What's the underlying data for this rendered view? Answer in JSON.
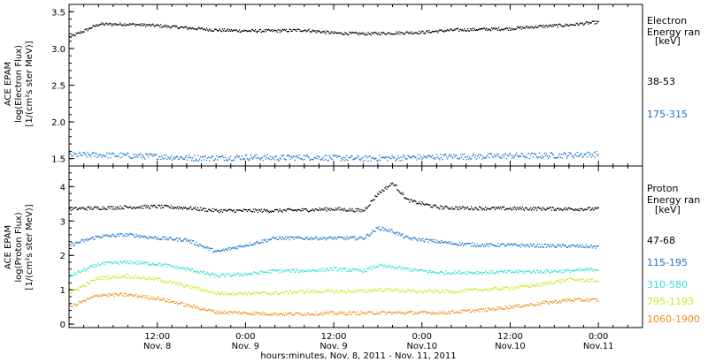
{
  "colors": {
    "black": "#000000",
    "blue": "#1a72c9",
    "cyan": "#2fe0d0",
    "lime": "#c9e81f",
    "orange": "#f08c1c"
  },
  "chart_data": [
    {
      "type": "scatter",
      "ylabel_lines": [
        "ACE EPAM",
        "log(Electron Flux)",
        "[1/(cm²s ster MeV)]"
      ],
      "ylim": [
        1.4,
        3.6
      ],
      "yticks": [
        "1.5",
        "2.0",
        "2.5",
        "3.0",
        "3.5"
      ],
      "grid": false,
      "legend_title": [
        "Electron",
        "Energy ran",
        "[keV]"
      ],
      "x_hours": [
        0,
        4,
        8,
        12,
        16,
        20,
        24,
        28,
        32,
        36,
        40,
        44,
        48,
        52,
        56,
        60,
        64,
        68,
        72
      ],
      "series": [
        {
          "name": "38-53",
          "color": "#000000",
          "values": [
            3.15,
            3.33,
            3.33,
            3.31,
            3.28,
            3.25,
            3.24,
            3.24,
            3.25,
            3.21,
            3.2,
            3.21,
            3.22,
            3.25,
            3.26,
            3.27,
            3.3,
            3.32,
            3.36
          ]
        },
        {
          "name": "175-315",
          "color": "#1a72c9",
          "values": [
            1.55,
            1.55,
            1.54,
            1.53,
            1.51,
            1.51,
            1.52,
            1.51,
            1.52,
            1.51,
            1.5,
            1.51,
            1.52,
            1.53,
            1.53,
            1.54,
            1.54,
            1.55,
            1.56
          ]
        }
      ]
    },
    {
      "type": "scatter",
      "ylabel_lines": [
        "ACE EPAM",
        "log(Proton Flux)",
        "[1/(cm²s ster MeV)]"
      ],
      "ylim": [
        -0.1,
        4.6
      ],
      "yticks": [
        "0",
        "1",
        "2",
        "3",
        "4"
      ],
      "grid": false,
      "legend_title": [
        "Proton",
        "Energy ran",
        "[keV]"
      ],
      "x_hours": [
        0,
        4,
        8,
        12,
        16,
        20,
        24,
        28,
        32,
        36,
        40,
        42,
        44,
        46,
        48,
        50,
        52,
        56,
        60,
        64,
        68,
        72
      ],
      "series": [
        {
          "name": "47-68",
          "color": "#000000",
          "values": [
            3.35,
            3.38,
            3.4,
            3.42,
            3.38,
            3.3,
            3.3,
            3.3,
            3.32,
            3.35,
            3.3,
            3.8,
            4.1,
            3.6,
            3.5,
            3.4,
            3.38,
            3.37,
            3.36,
            3.36,
            3.35,
            3.35
          ]
        },
        {
          "name": "115-195",
          "color": "#1a72c9",
          "values": [
            2.3,
            2.55,
            2.6,
            2.5,
            2.45,
            2.1,
            2.3,
            2.5,
            2.5,
            2.5,
            2.5,
            2.8,
            2.7,
            2.5,
            2.45,
            2.4,
            2.35,
            2.3,
            2.3,
            2.28,
            2.27,
            2.25
          ]
        },
        {
          "name": "310-580",
          "color": "#2fe0d0",
          "values": [
            1.4,
            1.75,
            1.8,
            1.75,
            1.6,
            1.4,
            1.45,
            1.55,
            1.55,
            1.6,
            1.55,
            1.7,
            1.65,
            1.6,
            1.55,
            1.5,
            1.5,
            1.5,
            1.52,
            1.53,
            1.55,
            1.6
          ]
        },
        {
          "name": "795-1193",
          "color": "#c9e81f",
          "values": [
            0.9,
            1.35,
            1.4,
            1.3,
            1.1,
            0.9,
            0.9,
            0.9,
            0.95,
            0.95,
            0.95,
            1.0,
            1.0,
            0.95,
            0.95,
            0.95,
            0.95,
            1.0,
            1.05,
            1.15,
            1.3,
            1.25
          ]
        },
        {
          "name": "1060-1900",
          "color": "#f08c1c",
          "values": [
            0.5,
            0.85,
            0.85,
            0.75,
            0.55,
            0.35,
            0.32,
            0.3,
            0.3,
            0.32,
            0.32,
            0.33,
            0.33,
            0.33,
            0.33,
            0.33,
            0.35,
            0.4,
            0.5,
            0.6,
            0.7,
            0.7
          ]
        }
      ]
    }
  ],
  "x_axis": {
    "range_hours": [
      0,
      78
    ],
    "tick_hours": [
      12,
      24,
      36,
      48,
      60,
      72
    ],
    "tick_time_labels": [
      "12:00",
      "0:00",
      "12:00",
      "0:00",
      "12:00",
      "0:00"
    ],
    "tick_date_labels": [
      "Nov. 8",
      "Nov. 9",
      "Nov. 9",
      "Nov.10",
      "Nov.10",
      "Nov.11"
    ],
    "title": "hours:minutes, Nov. 8, 2011 - Nov. 11, 2011"
  }
}
